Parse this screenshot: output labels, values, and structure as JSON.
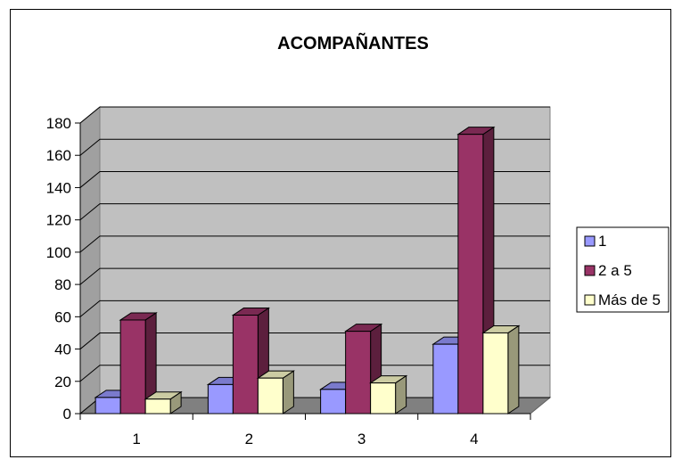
{
  "chart_data": {
    "type": "bar",
    "title": "ACOMPAÑANTES",
    "categories": [
      "1",
      "2",
      "3",
      "4"
    ],
    "series": [
      {
        "name": "1",
        "values": [
          10,
          18,
          15,
          43
        ],
        "color": "#9999FF"
      },
      {
        "name": "2 a 5",
        "values": [
          58,
          61,
          51,
          173
        ],
        "color": "#993366"
      },
      {
        "name": "Más de 5",
        "values": [
          9,
          22,
          19,
          50
        ],
        "color": "#FFFFCC"
      }
    ],
    "ylim": [
      0,
      180
    ],
    "yticks": [
      "0",
      "20",
      "40",
      "60",
      "80",
      "100",
      "120",
      "140",
      "160",
      "180"
    ],
    "grid": true,
    "legend_position": "right",
    "xlabel": "",
    "ylabel": ""
  }
}
